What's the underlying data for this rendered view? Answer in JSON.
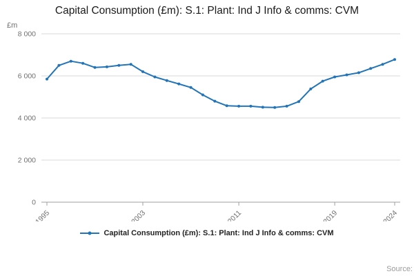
{
  "title": "Capital Consumption (£m): S.1: Plant: Ind J Info & comms: CVM",
  "legend": {
    "label": "Capital Consumption (£m): S.1: Plant: Ind J Info & comms: CVM"
  },
  "source": {
    "label": "Source:"
  },
  "colors": {
    "line": "#2074b7",
    "grid": "#d8d8d8",
    "axis": "#9f9f9f",
    "tick_text": "#707071",
    "title_text": "#1a1a1a"
  },
  "chart_data": {
    "type": "line",
    "title": "Capital Consumption (£m): S.1: Plant: Ind J Info & comms: CVM",
    "xlabel": "",
    "ylabel": "£m",
    "ylim": [
      0,
      8000
    ],
    "yticks": [
      0,
      2000,
      4000,
      6000,
      8000
    ],
    "ytick_labels": [
      "0",
      "2 000",
      "4 000",
      "6 000",
      "8 000"
    ],
    "xticks": [
      1995,
      2003,
      2011,
      2019,
      2024
    ],
    "grid": true,
    "legend_position": "bottom",
    "x": [
      1995,
      1996,
      1997,
      1998,
      1999,
      2000,
      2001,
      2002,
      2003,
      2004,
      2005,
      2006,
      2007,
      2008,
      2009,
      2010,
      2011,
      2012,
      2013,
      2014,
      2015,
      2016,
      2017,
      2018,
      2019,
      2020,
      2021,
      2022,
      2023,
      2024
    ],
    "series": [
      {
        "name": "Capital Consumption (£m): S.1: Plant: Ind J Info & comms: CVM",
        "values": [
          5850,
          6500,
          6700,
          6600,
          6400,
          6430,
          6500,
          6550,
          6200,
          5950,
          5780,
          5620,
          5450,
          5100,
          4800,
          4580,
          4560,
          4560,
          4510,
          4500,
          4560,
          4780,
          5380,
          5750,
          5950,
          6050,
          6150,
          6350,
          6550,
          6780
        ]
      }
    ],
    "line_color": "#2074b7"
  }
}
